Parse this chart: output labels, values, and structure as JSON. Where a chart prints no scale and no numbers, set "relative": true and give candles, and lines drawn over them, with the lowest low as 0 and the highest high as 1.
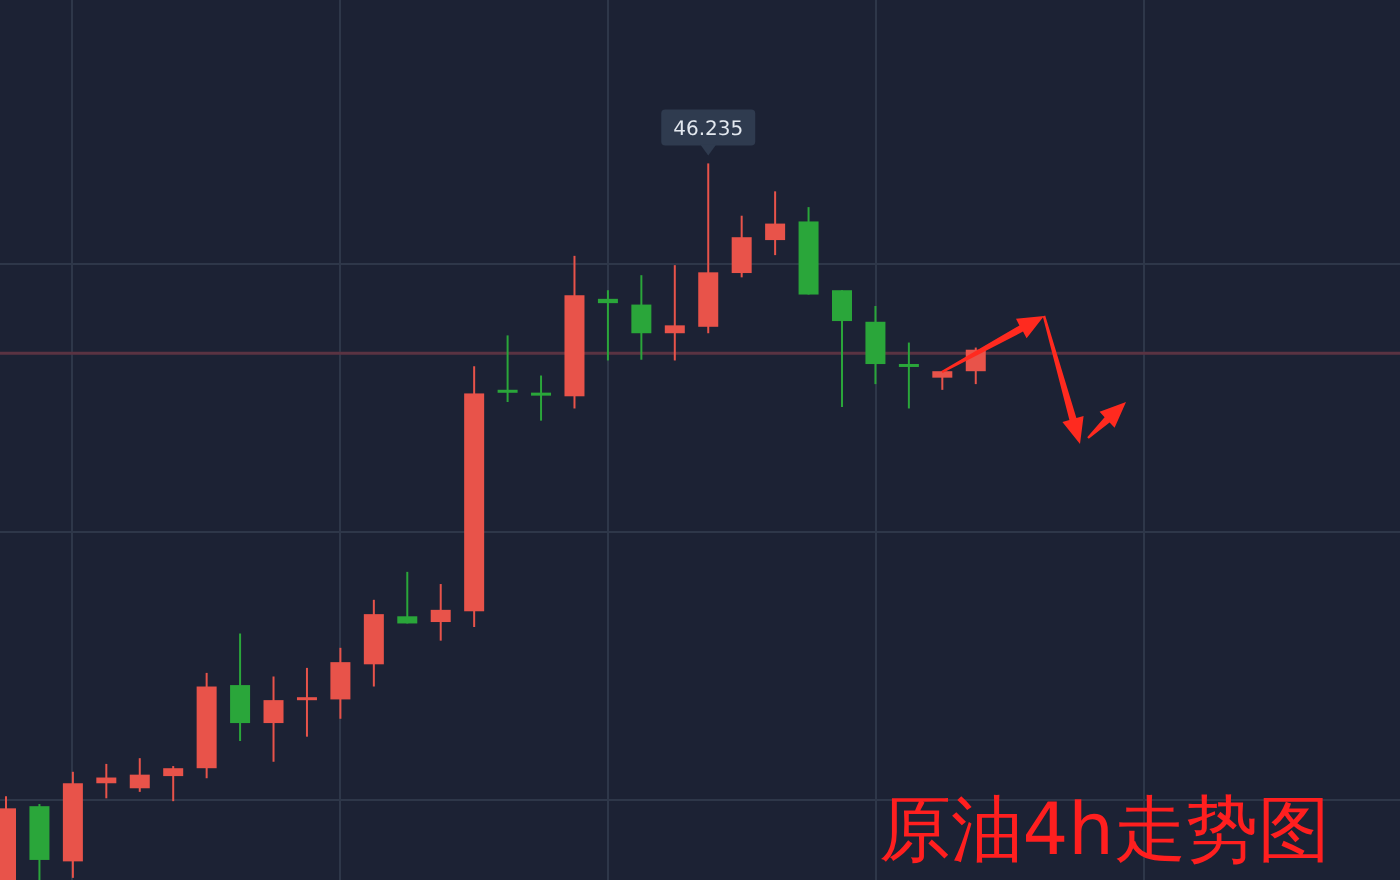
{
  "chart_data": {
    "type": "candlestick",
    "title": "原油4h走势图",
    "relative": true,
    "grid": true,
    "categories": [
      null,
      null,
      null,
      null,
      null,
      null,
      null,
      null,
      null,
      null,
      null,
      null,
      null,
      null,
      null,
      null,
      null,
      null,
      null,
      null,
      null,
      null,
      null,
      null,
      null,
      null,
      null,
      null,
      null,
      null
    ],
    "ohlc": [
      [
        0,
        0.117,
        0,
        0.1
      ],
      [
        0.103,
        0.106,
        0,
        0.028
      ],
      [
        0.026,
        0.151,
        0.003,
        0.135
      ],
      [
        0.135,
        0.162,
        0.114,
        0.143
      ],
      [
        0.128,
        0.17,
        0.123,
        0.147
      ],
      [
        0.145,
        0.159,
        0.11,
        0.156
      ],
      [
        0.156,
        0.289,
        0.142,
        0.27
      ],
      [
        0.272,
        0.344,
        0.194,
        0.219
      ],
      [
        0.219,
        0.284,
        0.165,
        0.251
      ],
      [
        0.253,
        0.296,
        0.2,
        0.253
      ],
      [
        0.252,
        0.324,
        0.225,
        0.304
      ],
      [
        0.301,
        0.391,
        0.27,
        0.371
      ],
      [
        0.368,
        0.43,
        0.358,
        0.358
      ],
      [
        0.36,
        0.413,
        0.334,
        0.377
      ],
      [
        0.375,
        0.717,
        0.353,
        0.679
      ],
      [
        0.682,
        0.76,
        0.667,
        0.682
      ],
      [
        0.678,
        0.704,
        0.641,
        0.678
      ],
      [
        0.675,
        0.871,
        0.658,
        0.816
      ],
      [
        0.811,
        0.823,
        0.725,
        0.805
      ],
      [
        0.803,
        0.844,
        0.726,
        0.763
      ],
      [
        0.763,
        0.858,
        0.725,
        0.774
      ],
      [
        0.772,
        1,
        0.763,
        0.848
      ],
      [
        0.847,
        0.927,
        0.841,
        0.897
      ],
      [
        0.893,
        0.961,
        0.872,
        0.916
      ],
      [
        0.919,
        0.939,
        0.817,
        0.817
      ],
      [
        0.823,
        0.823,
        0.66,
        0.78
      ],
      [
        0.779,
        0.801,
        0.692,
        0.72
      ],
      [
        0.718,
        0.75,
        0.658,
        0.718
      ],
      [
        0.701,
        0.71,
        0.684,
        0.71
      ],
      [
        0.71,
        0.743,
        0.692,
        0.74
      ]
    ],
    "colors": [
      "#e8534a",
      "#2aa63a",
      "#e8534a",
      "#e8534a",
      "#e8534a",
      "#e8534a",
      "#e8534a",
      "#2aa63a",
      "#e8534a",
      "#e8534a",
      "#e8534a",
      "#e8534a",
      "#2aa63a",
      "#e8534a",
      "#e8534a",
      "#2aa63a",
      "#2aa63a",
      "#e8534a",
      "#2aa63a",
      "#2aa63a",
      "#e8534a",
      "#e8534a",
      "#e8534a",
      "#e8534a",
      "#2aa63a",
      "#2aa63a",
      "#2aa63a",
      "#2aa63a",
      "#e8534a",
      "#e8534a"
    ],
    "ref_lines": [
      {
        "axis": "y",
        "value": 0.735,
        "color": "#5a3342"
      }
    ],
    "annotations": [
      {
        "text": "46.235",
        "y": 1
      }
    ]
  }
}
